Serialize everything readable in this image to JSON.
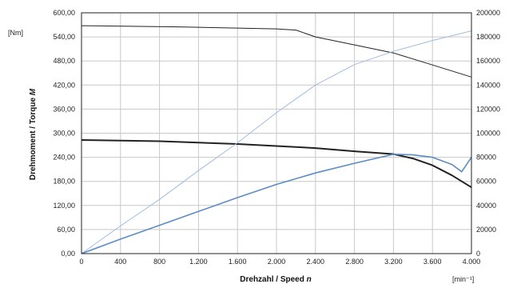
{
  "chart_data": {
    "type": "line",
    "xlabel_prefix": "Drehzahl / Speed ",
    "xlabel_symbol": "n",
    "ylabel_prefix": "Drehmoment / Torque ",
    "ylabel_symbol": "M",
    "y_unit": "[Nm]",
    "x_unit": "[min⁻¹]",
    "xlim": [
      0,
      4000
    ],
    "ylim": [
      0,
      600
    ],
    "y2lim": [
      0,
      200000
    ],
    "x_ticks": [
      {
        "value": 0,
        "label": "0"
      },
      {
        "value": 400,
        "label": "400"
      },
      {
        "value": 800,
        "label": "800"
      },
      {
        "value": 1200,
        "label": "1.200"
      },
      {
        "value": 1600,
        "label": "1.600"
      },
      {
        "value": 2000,
        "label": "2.000"
      },
      {
        "value": 2400,
        "label": "2.400"
      },
      {
        "value": 2800,
        "label": "2.800"
      },
      {
        "value": 3200,
        "label": "3.200"
      },
      {
        "value": 3600,
        "label": "3.600"
      },
      {
        "value": 4000,
        "label": "4.000"
      }
    ],
    "y_ticks": [
      {
        "value": 0,
        "label": "0,00"
      },
      {
        "value": 60,
        "label": "60,00"
      },
      {
        "value": 120,
        "label": "120,00"
      },
      {
        "value": 180,
        "label": "180,00"
      },
      {
        "value": 240,
        "label": "240,00"
      },
      {
        "value": 300,
        "label": "300,00"
      },
      {
        "value": 360,
        "label": "360,00"
      },
      {
        "value": 420,
        "label": "420,00"
      },
      {
        "value": 480,
        "label": "480,00"
      },
      {
        "value": 540,
        "label": "540,00"
      },
      {
        "value": 600,
        "label": "600,00"
      }
    ],
    "y2_ticks": [
      {
        "value": 0,
        "label": "0"
      },
      {
        "value": 20000,
        "label": "20000"
      },
      {
        "value": 40000,
        "label": "40000"
      },
      {
        "value": 60000,
        "label": "60000"
      },
      {
        "value": 80000,
        "label": "80000"
      },
      {
        "value": 100000,
        "label": "100000"
      },
      {
        "value": 120000,
        "label": "120000"
      },
      {
        "value": 140000,
        "label": "140000"
      },
      {
        "value": 160000,
        "label": "160000"
      },
      {
        "value": 180000,
        "label": "180000"
      },
      {
        "value": 200000,
        "label": "200000"
      }
    ],
    "grid": true,
    "colors": {
      "dark": "#222222",
      "blue": "#5b8dc4",
      "light_blue": "#9dbde0",
      "grid": "#c8c8c8"
    },
    "series": [
      {
        "axis": "y",
        "color_key": "dark",
        "width": 1,
        "x": [
          0,
          1000,
          2000,
          2200,
          2400,
          2800,
          3200,
          3600,
          4000
        ],
        "y": [
          568,
          565,
          560,
          557,
          540,
          520,
          500,
          470,
          440
        ]
      },
      {
        "axis": "y",
        "color_key": "dark",
        "width": 2,
        "x": [
          0,
          800,
          1600,
          2400,
          2800,
          3200,
          3400,
          3600,
          3800,
          4000
        ],
        "y": [
          283,
          280,
          273,
          263,
          255,
          248,
          237,
          220,
          195,
          165
        ]
      },
      {
        "axis": "y2",
        "color_key": "light_blue",
        "width": 1,
        "x": [
          0,
          400,
          800,
          1200,
          1600,
          2000,
          2400,
          2800,
          3200,
          3600,
          4000
        ],
        "y": [
          0,
          23000,
          45000,
          69000,
          92000,
          117000,
          140000,
          157000,
          168000,
          177000,
          185000
        ]
      },
      {
        "axis": "y2",
        "color_key": "blue",
        "width": 1.6,
        "x": [
          0,
          400,
          800,
          1200,
          1600,
          2000,
          2400,
          2800,
          3200,
          3400,
          3600,
          3800,
          3900,
          4000
        ],
        "y": [
          0,
          12000,
          23500,
          35000,
          46500,
          57500,
          67000,
          75000,
          82500,
          82000,
          80000,
          74000,
          68000,
          80000
        ]
      }
    ]
  }
}
